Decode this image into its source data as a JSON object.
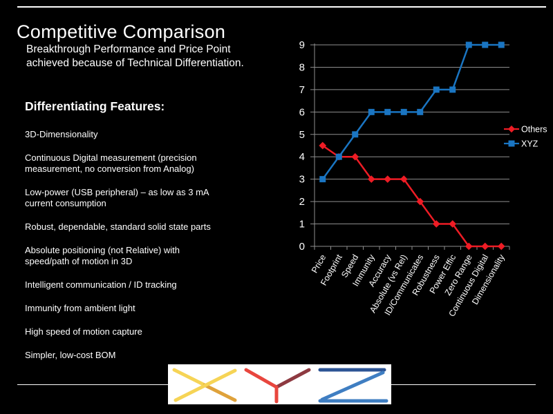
{
  "slide": {
    "title": "Competitive Comparison",
    "subtitle_lines": [
      "Breakthrough Performance and Price Point",
      "achieved because of Technical Differentiation."
    ],
    "features_heading": "Differentiating Features:",
    "features": [
      {
        "lines": [
          "3D-Dimensionality"
        ]
      },
      {
        "lines": [
          "Continuous Digital measurement (precision",
          "measurement, no conversion from Analog)"
        ]
      },
      {
        "lines": [
          "Low-power (USB peripheral) – as low as 3 mA",
          "current consumption"
        ]
      },
      {
        "lines": [
          "Robust, dependable, standard solid state parts"
        ]
      },
      {
        "lines": [
          "Absolute positioning (not Relative) with",
          "speed/path of motion in 3D"
        ]
      },
      {
        "lines": [
          "Intelligent communication / ID tracking"
        ]
      },
      {
        "lines": [
          "Immunity from ambient light"
        ]
      },
      {
        "lines": [
          "High speed of motion capture"
        ]
      },
      {
        "lines": [
          "Simpler, low-cost BOM"
        ]
      }
    ],
    "logo_text": "XYZ",
    "logo_colors": {
      "x_light_yellow": "#F6D456",
      "x_gold": "#DFA23B",
      "y_red": "#E8463E",
      "y_maroon": "#8E3A41",
      "z_navy": "#2B5394",
      "z_blue": "#3F7EC2"
    }
  },
  "chart_data": {
    "type": "line",
    "categories": [
      "Price",
      "Footprint",
      "Speed",
      "Immunity",
      "Accuracy",
      "Absolute (vs Rel)",
      "ID/Communicates",
      "Robustness",
      "Power Effic",
      "Zero Range",
      "Continuous Digital",
      "Dimensionality"
    ],
    "series": [
      {
        "name": "Others",
        "color": "#ee1c25",
        "marker": "diamond",
        "values": [
          4.5,
          4,
          4,
          3,
          3,
          3,
          2,
          1,
          1,
          0,
          0,
          0
        ]
      },
      {
        "name": "XYZ",
        "color": "#1a75c2",
        "marker": "square",
        "values": [
          3,
          4,
          5,
          6,
          6,
          6,
          6,
          7,
          7,
          9,
          9,
          9
        ]
      }
    ],
    "title": "",
    "xlabel": "",
    "ylabel": "",
    "ylim": [
      0,
      9
    ],
    "ytick_step": 1,
    "grid": true,
    "legend_position": "right",
    "gridline_color": "#8f8f8f",
    "axis_color": "#8f8f8f",
    "label_color": "#ffffff"
  }
}
